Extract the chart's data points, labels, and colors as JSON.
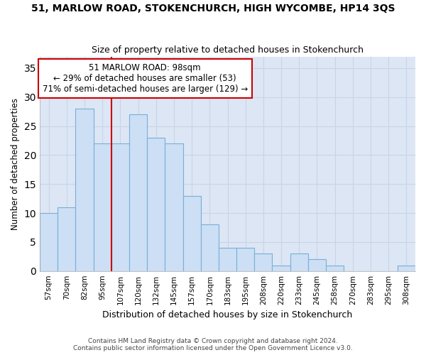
{
  "title": "51, MARLOW ROAD, STOKENCHURCH, HIGH WYCOMBE, HP14 3QS",
  "subtitle": "Size of property relative to detached houses in Stokenchurch",
  "xlabel": "Distribution of detached houses by size in Stokenchurch",
  "ylabel": "Number of detached properties",
  "categories": [
    "57sqm",
    "70sqm",
    "82sqm",
    "95sqm",
    "107sqm",
    "120sqm",
    "132sqm",
    "145sqm",
    "157sqm",
    "170sqm",
    "183sqm",
    "195sqm",
    "208sqm",
    "220sqm",
    "233sqm",
    "245sqm",
    "258sqm",
    "270sqm",
    "283sqm",
    "295sqm",
    "308sqm"
  ],
  "values": [
    10,
    11,
    28,
    22,
    22,
    27,
    23,
    22,
    13,
    8,
    4,
    4,
    3,
    1,
    3,
    2,
    1,
    0,
    0,
    0,
    1
  ],
  "bar_color": "#ccdff5",
  "bar_edge_color": "#7aaed6",
  "red_line_x": 3.5,
  "annotation_title": "51 MARLOW ROAD: 98sqm",
  "annotation_line1": "← 29% of detached houses are smaller (53)",
  "annotation_line2": "71% of semi-detached houses are larger (129) →",
  "annotation_box_color": "#ffffff",
  "annotation_box_edge": "#cc0000",
  "red_line_color": "#cc0000",
  "ylim": [
    0,
    37
  ],
  "grid_color": "#c8d4e8",
  "background_color": "#dce6f5",
  "footer": "Contains HM Land Registry data © Crown copyright and database right 2024.\nContains public sector information licensed under the Open Government Licence v3.0."
}
